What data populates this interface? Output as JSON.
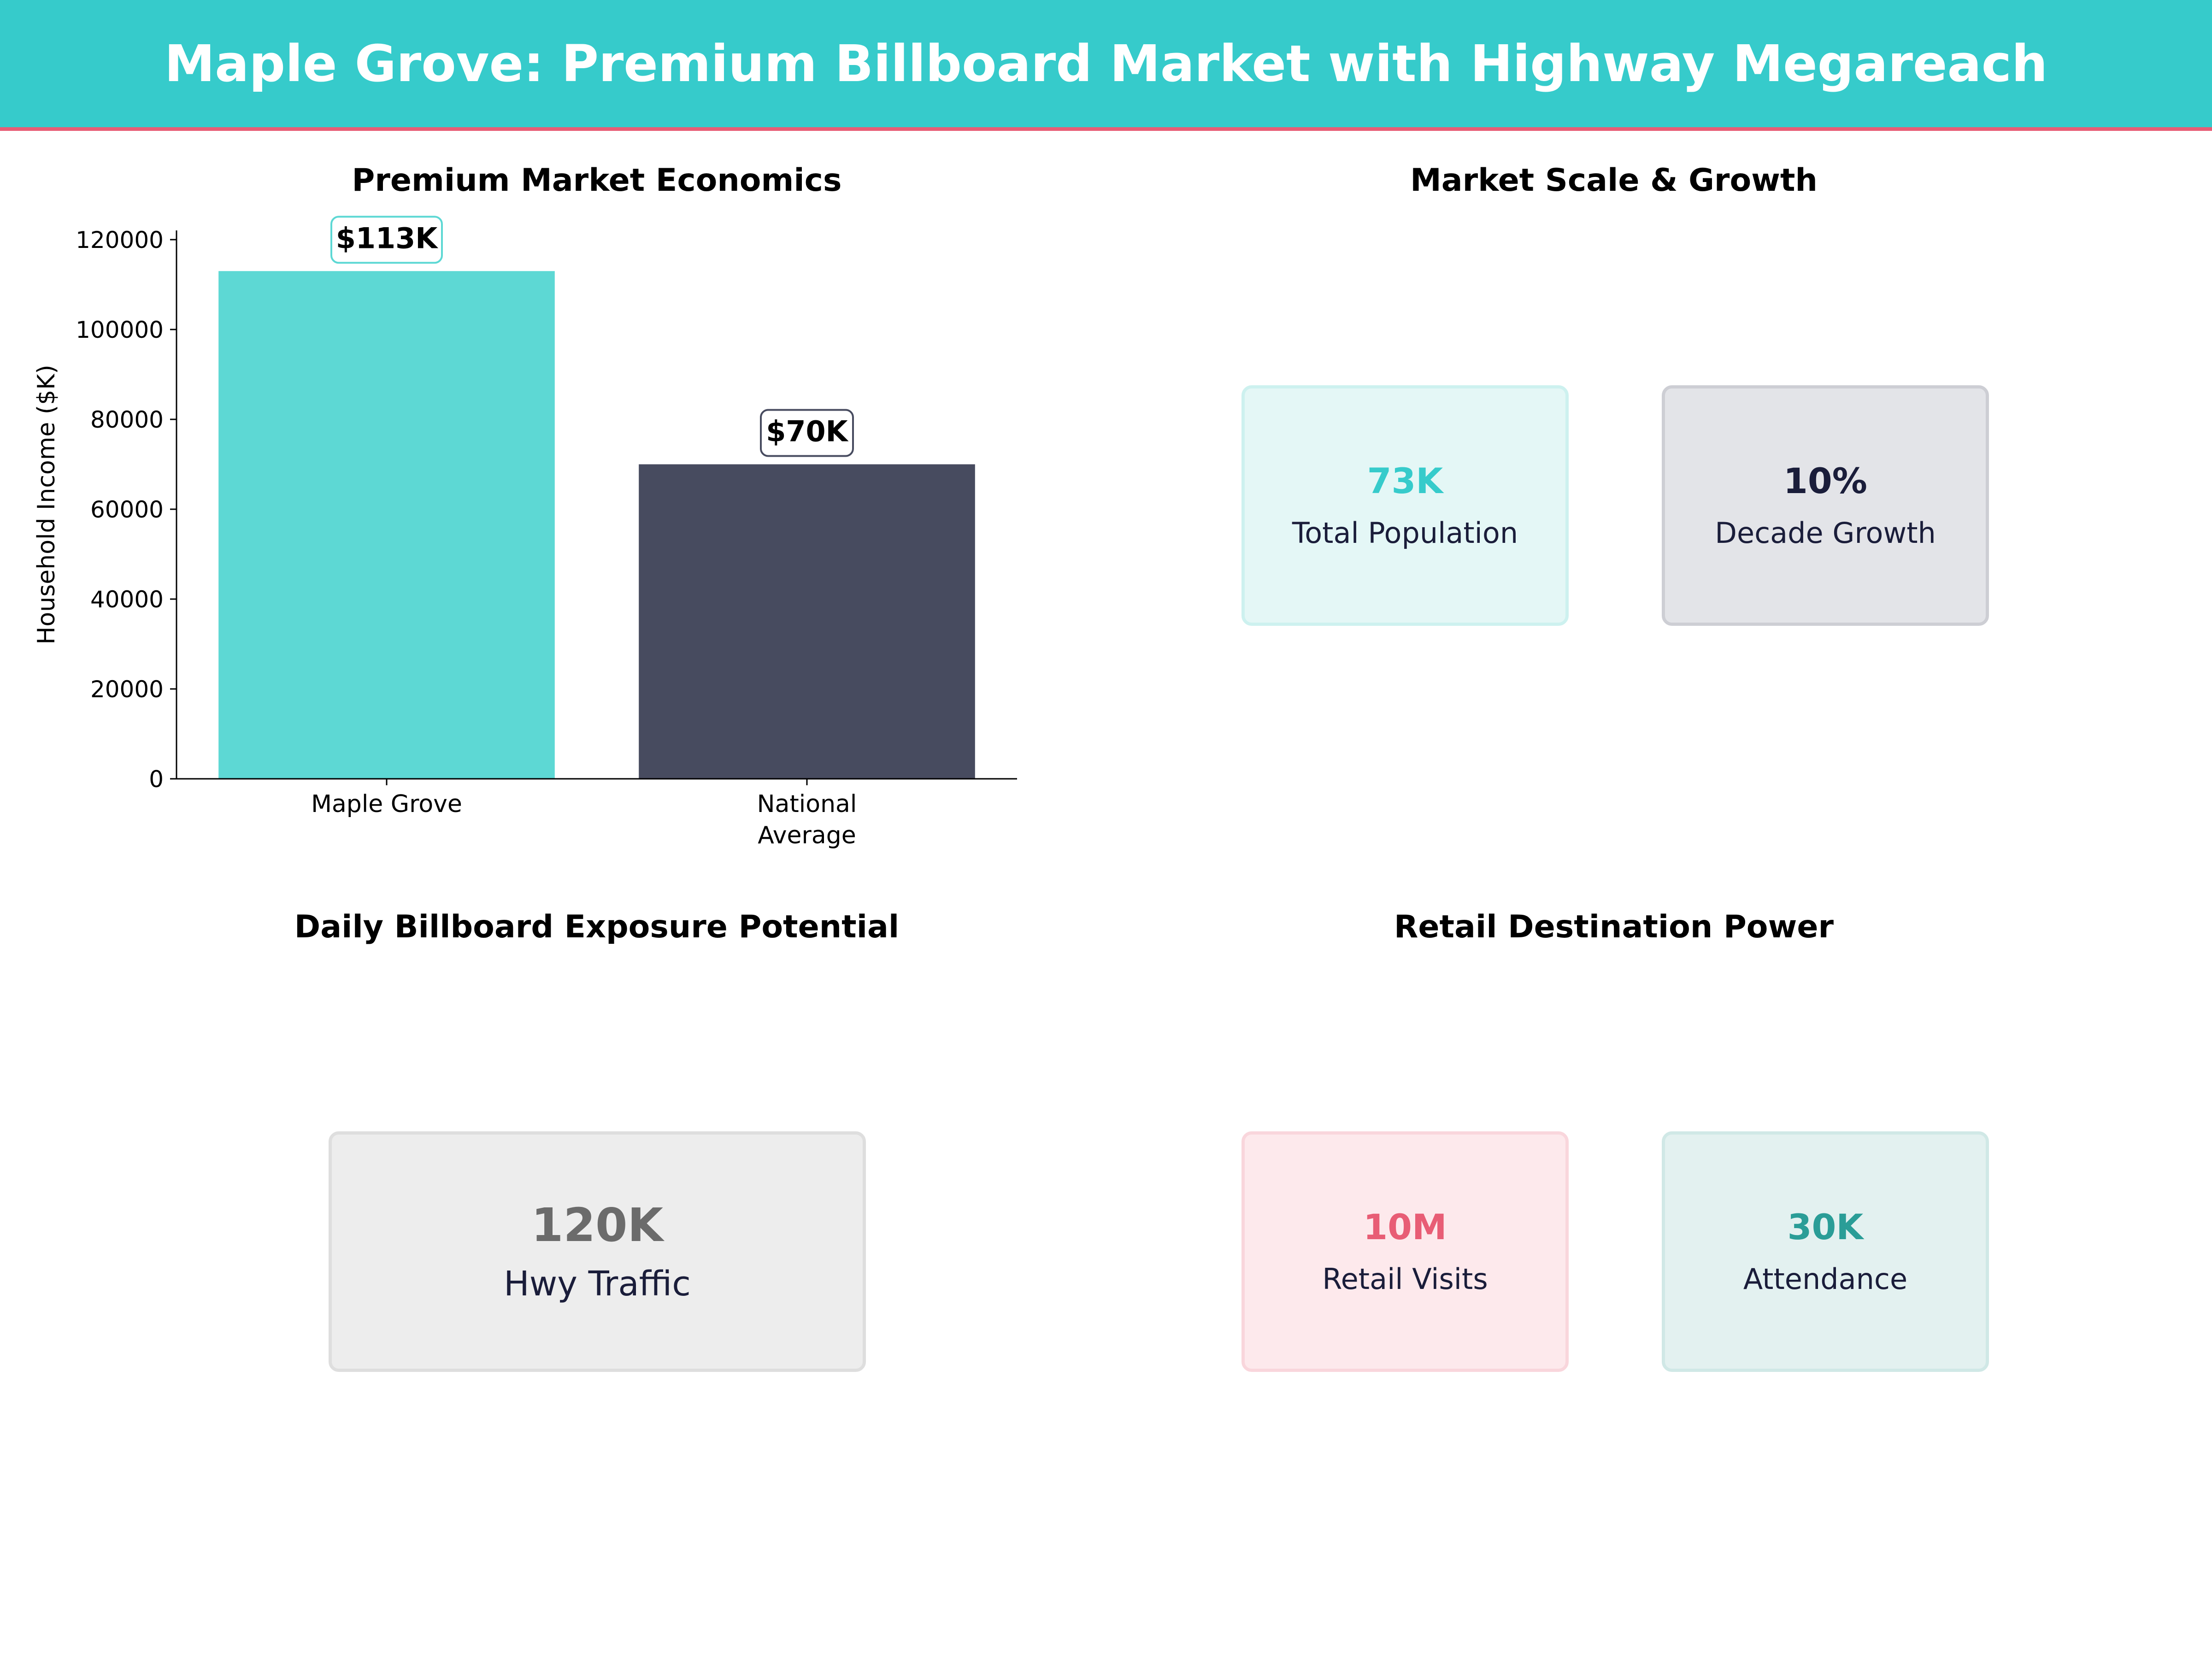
{
  "header": {
    "title": "Maple Grove: Premium Billboard Market with Highway Megareach"
  },
  "panels": {
    "economics_title": "Premium Market Economics",
    "scale_title": "Market Scale & Growth",
    "exposure_title": "Daily Billboard Exposure Potential",
    "retail_title": "Retail Destination Power"
  },
  "chart_data": {
    "type": "bar",
    "title": "Premium Market Economics",
    "categories": [
      "Maple Grove",
      "National Average"
    ],
    "category_lines": [
      [
        "Maple Grove"
      ],
      [
        "National",
        "Average"
      ]
    ],
    "values": [
      113000,
      70000
    ],
    "data_labels": [
      "$113K",
      "$70K"
    ],
    "colors": [
      "#5DD8D4",
      "#474B5F"
    ],
    "ylabel": "Household Income ($K)",
    "ylim": [
      0,
      120000
    ],
    "yticks": [
      0,
      20000,
      40000,
      60000,
      80000,
      100000,
      120000
    ],
    "grid": false
  },
  "scale_cards": [
    {
      "value": "73K",
      "label": "Total Population",
      "color": "#36CBCB",
      "bg": "#E4F7F6",
      "border": "#CDF1EF"
    },
    {
      "value": "10%",
      "label": "Decade Growth",
      "color": "#1A1D3A",
      "bg": "#E3E4E8",
      "border": "#CDCED4"
    }
  ],
  "exposure_card": {
    "value": "120K",
    "label": "Hwy Traffic",
    "color": "#6B6B6B",
    "bg": "#EDEDED",
    "border": "#DEDEDE"
  },
  "retail_cards": [
    {
      "value": "10M",
      "label": "Retail Visits",
      "color": "#E85D75",
      "bg": "#FDE9EC",
      "border": "#F9D6DC"
    },
    {
      "value": "30K",
      "label": "Attendance",
      "color": "#2A9D97",
      "bg": "#E3F1F0",
      "border": "#D0E8E6"
    }
  ]
}
